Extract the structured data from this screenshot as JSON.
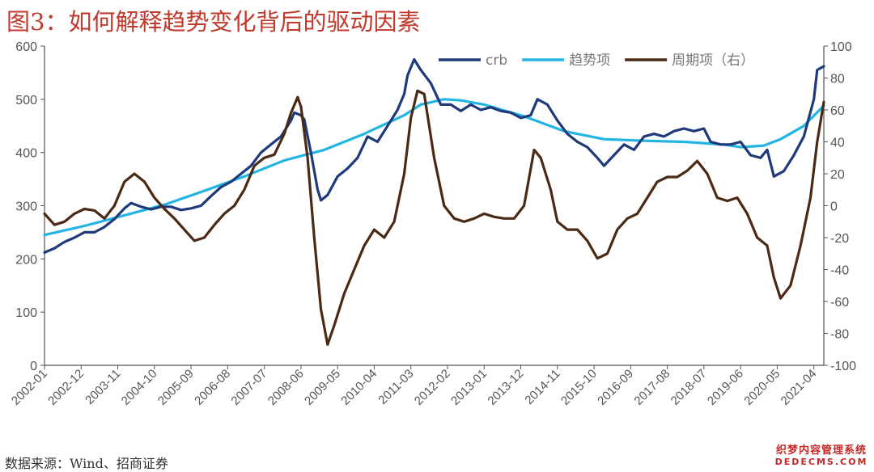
{
  "figure": {
    "title": "图3：如何解释趋势变化背后的驱动因素",
    "source": "数据来源：Wind、招商证券",
    "watermark_line1": "织梦内容管理系统",
    "watermark_line2": "DEDECMS.COM"
  },
  "chart_data": {
    "type": "line",
    "x_ticks": [
      "2002-01",
      "2002-12",
      "2003-11",
      "2004-10",
      "2005-09",
      "2006-08",
      "2007-07",
      "2008-06",
      "2009-05",
      "2010-04",
      "2011-03",
      "2012-02",
      "2013-01",
      "2013-12",
      "2014-11",
      "2015-10",
      "2016-09",
      "2017-08",
      "2018-07",
      "2019-06",
      "2020-05",
      "2021-04"
    ],
    "x_range": [
      "2002-01",
      "2021-07"
    ],
    "y_left": {
      "range": [
        0,
        600
      ],
      "ticks": [
        0,
        100,
        200,
        300,
        400,
        500,
        600
      ]
    },
    "y_right": {
      "range": [
        -100,
        100
      ],
      "ticks": [
        -100,
        -80,
        -60,
        -40,
        -20,
        0,
        20,
        40,
        60,
        80,
        100
      ]
    },
    "legend_position": "top-right",
    "colors": {
      "crb": "#1f3a7a",
      "trend": "#22b5e3",
      "cycle": "#4a2a14"
    },
    "series": [
      {
        "name": "crb",
        "axis": "left",
        "points": [
          [
            "2002-01",
            212
          ],
          [
            "2002-04",
            220
          ],
          [
            "2002-07",
            232
          ],
          [
            "2002-10",
            240
          ],
          [
            "2003-01",
            250
          ],
          [
            "2003-04",
            250
          ],
          [
            "2003-07",
            260
          ],
          [
            "2003-10",
            275
          ],
          [
            "2004-01",
            295
          ],
          [
            "2004-03",
            305
          ],
          [
            "2004-06",
            298
          ],
          [
            "2004-09",
            293
          ],
          [
            "2004-12",
            298
          ],
          [
            "2005-03",
            298
          ],
          [
            "2005-06",
            292
          ],
          [
            "2005-09",
            295
          ],
          [
            "2005-12",
            300
          ],
          [
            "2006-03",
            318
          ],
          [
            "2006-06",
            335
          ],
          [
            "2006-09",
            345
          ],
          [
            "2006-12",
            360
          ],
          [
            "2007-03",
            375
          ],
          [
            "2007-06",
            400
          ],
          [
            "2007-09",
            415
          ],
          [
            "2007-12",
            430
          ],
          [
            "2008-03",
            460
          ],
          [
            "2008-04",
            475
          ],
          [
            "2008-06",
            470
          ],
          [
            "2008-07",
            462
          ],
          [
            "2008-09",
            400
          ],
          [
            "2008-11",
            330
          ],
          [
            "2008-12",
            310
          ],
          [
            "2009-02",
            320
          ],
          [
            "2009-05",
            355
          ],
          [
            "2009-08",
            370
          ],
          [
            "2009-11",
            390
          ],
          [
            "2010-02",
            430
          ],
          [
            "2010-05",
            420
          ],
          [
            "2010-08",
            450
          ],
          [
            "2010-11",
            480
          ],
          [
            "2011-01",
            510
          ],
          [
            "2011-02",
            545
          ],
          [
            "2011-04",
            575
          ],
          [
            "2011-06",
            555
          ],
          [
            "2011-09",
            530
          ],
          [
            "2011-12",
            490
          ],
          [
            "2012-03",
            490
          ],
          [
            "2012-06",
            478
          ],
          [
            "2012-09",
            490
          ],
          [
            "2012-12",
            480
          ],
          [
            "2013-03",
            485
          ],
          [
            "2013-06",
            478
          ],
          [
            "2013-09",
            475
          ],
          [
            "2013-12",
            465
          ],
          [
            "2014-03",
            470
          ],
          [
            "2014-05",
            500
          ],
          [
            "2014-08",
            490
          ],
          [
            "2014-11",
            460
          ],
          [
            "2015-02",
            435
          ],
          [
            "2015-05",
            420
          ],
          [
            "2015-08",
            410
          ],
          [
            "2015-11",
            390
          ],
          [
            "2016-01",
            375
          ],
          [
            "2016-04",
            395
          ],
          [
            "2016-07",
            415
          ],
          [
            "2016-10",
            405
          ],
          [
            "2017-01",
            430
          ],
          [
            "2017-04",
            435
          ],
          [
            "2017-07",
            430
          ],
          [
            "2017-10",
            440
          ],
          [
            "2018-01",
            445
          ],
          [
            "2018-04",
            440
          ],
          [
            "2018-07",
            445
          ],
          [
            "2018-09",
            420
          ],
          [
            "2018-12",
            415
          ],
          [
            "2019-03",
            415
          ],
          [
            "2019-06",
            420
          ],
          [
            "2019-09",
            395
          ],
          [
            "2019-12",
            390
          ],
          [
            "2020-02",
            405
          ],
          [
            "2020-04",
            355
          ],
          [
            "2020-07",
            365
          ],
          [
            "2020-10",
            395
          ],
          [
            "2021-01",
            430
          ],
          [
            "2021-04",
            500
          ],
          [
            "2021-05",
            555
          ],
          [
            "2021-07",
            562
          ]
        ]
      },
      {
        "name": "趋势项",
        "axis": "left",
        "points": [
          [
            "2002-01",
            245
          ],
          [
            "2003-01",
            262
          ],
          [
            "2004-01",
            282
          ],
          [
            "2005-01",
            302
          ],
          [
            "2006-01",
            328
          ],
          [
            "2007-01",
            355
          ],
          [
            "2008-01",
            385
          ],
          [
            "2009-01",
            405
          ],
          [
            "2010-01",
            435
          ],
          [
            "2011-01",
            470
          ],
          [
            "2011-06",
            490
          ],
          [
            "2012-01",
            500
          ],
          [
            "2012-06",
            498
          ],
          [
            "2013-01",
            490
          ],
          [
            "2014-01",
            468
          ],
          [
            "2015-01",
            440
          ],
          [
            "2016-01",
            425
          ],
          [
            "2017-01",
            422
          ],
          [
            "2018-01",
            420
          ],
          [
            "2019-01",
            415
          ],
          [
            "2019-06",
            410
          ],
          [
            "2020-01",
            413
          ],
          [
            "2020-06",
            425
          ],
          [
            "2021-01",
            450
          ],
          [
            "2021-07",
            488
          ]
        ]
      },
      {
        "name": "周期项（右）",
        "axis": "right",
        "points": [
          [
            "2002-01",
            -5
          ],
          [
            "2002-04",
            -12
          ],
          [
            "2002-07",
            -10
          ],
          [
            "2002-10",
            -5
          ],
          [
            "2003-01",
            -2
          ],
          [
            "2003-04",
            -3
          ],
          [
            "2003-07",
            -8
          ],
          [
            "2003-10",
            0
          ],
          [
            "2004-01",
            15
          ],
          [
            "2004-04",
            20
          ],
          [
            "2004-07",
            15
          ],
          [
            "2004-10",
            5
          ],
          [
            "2005-01",
            -2
          ],
          [
            "2005-04",
            -8
          ],
          [
            "2005-07",
            -15
          ],
          [
            "2005-10",
            -22
          ],
          [
            "2006-01",
            -20
          ],
          [
            "2006-04",
            -12
          ],
          [
            "2006-07",
            -5
          ],
          [
            "2006-10",
            0
          ],
          [
            "2007-01",
            10
          ],
          [
            "2007-04",
            25
          ],
          [
            "2007-07",
            30
          ],
          [
            "2007-10",
            32
          ],
          [
            "2008-01",
            45
          ],
          [
            "2008-03",
            58
          ],
          [
            "2008-05",
            68
          ],
          [
            "2008-06",
            62
          ],
          [
            "2008-08",
            30
          ],
          [
            "2008-10",
            -20
          ],
          [
            "2008-12",
            -65
          ],
          [
            "2009-02",
            -87
          ],
          [
            "2009-04",
            -75
          ],
          [
            "2009-07",
            -55
          ],
          [
            "2009-10",
            -40
          ],
          [
            "2010-01",
            -25
          ],
          [
            "2010-04",
            -15
          ],
          [
            "2010-07",
            -20
          ],
          [
            "2010-10",
            -10
          ],
          [
            "2011-01",
            20
          ],
          [
            "2011-03",
            55
          ],
          [
            "2011-05",
            72
          ],
          [
            "2011-07",
            70
          ],
          [
            "2011-10",
            30
          ],
          [
            "2012-01",
            0
          ],
          [
            "2012-04",
            -8
          ],
          [
            "2012-07",
            -10
          ],
          [
            "2012-10",
            -8
          ],
          [
            "2013-01",
            -5
          ],
          [
            "2013-04",
            -7
          ],
          [
            "2013-07",
            -8
          ],
          [
            "2013-10",
            -8
          ],
          [
            "2014-01",
            0
          ],
          [
            "2014-04",
            35
          ],
          [
            "2014-06",
            30
          ],
          [
            "2014-09",
            10
          ],
          [
            "2014-11",
            -10
          ],
          [
            "2015-02",
            -15
          ],
          [
            "2015-05",
            -15
          ],
          [
            "2015-08",
            -22
          ],
          [
            "2015-11",
            -33
          ],
          [
            "2016-02",
            -30
          ],
          [
            "2016-05",
            -15
          ],
          [
            "2016-08",
            -8
          ],
          [
            "2016-11",
            -5
          ],
          [
            "2017-02",
            5
          ],
          [
            "2017-05",
            15
          ],
          [
            "2017-08",
            18
          ],
          [
            "2017-11",
            18
          ],
          [
            "2018-02",
            22
          ],
          [
            "2018-05",
            28
          ],
          [
            "2018-08",
            20
          ],
          [
            "2018-11",
            5
          ],
          [
            "2019-02",
            3
          ],
          [
            "2019-05",
            5
          ],
          [
            "2019-08",
            -5
          ],
          [
            "2019-11",
            -20
          ],
          [
            "2020-02",
            -25
          ],
          [
            "2020-04",
            -45
          ],
          [
            "2020-06",
            -58
          ],
          [
            "2020-09",
            -50
          ],
          [
            "2020-12",
            -25
          ],
          [
            "2021-03",
            5
          ],
          [
            "2021-05",
            40
          ],
          [
            "2021-07",
            65
          ]
        ]
      }
    ]
  }
}
